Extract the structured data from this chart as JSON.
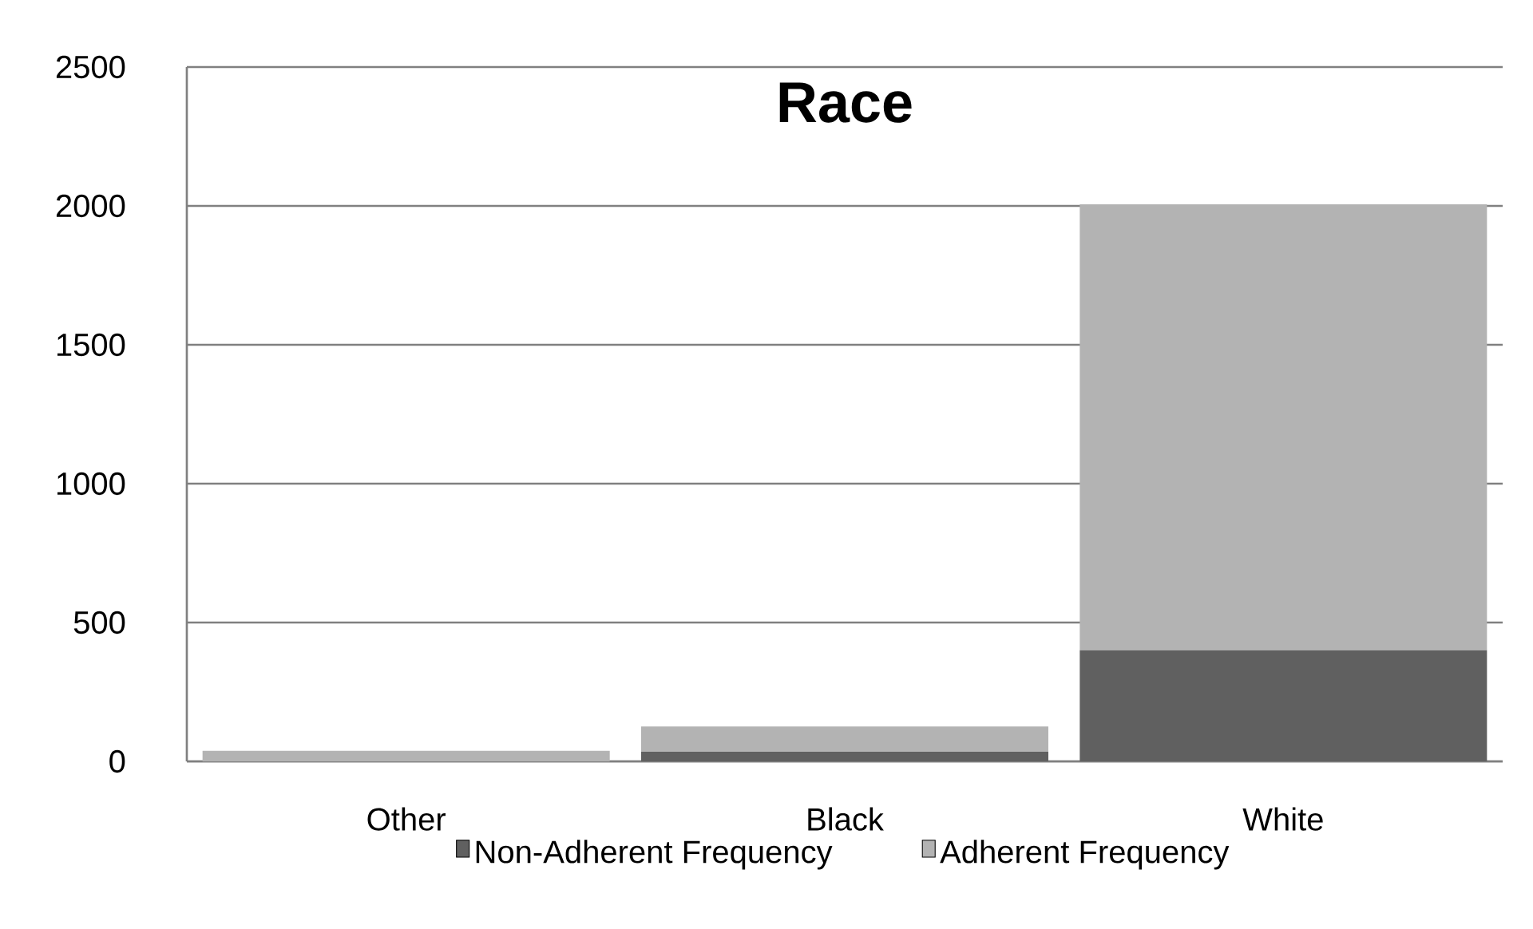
{
  "chart_data": {
    "type": "bar",
    "title": "Race",
    "categories": [
      "Other",
      "Black",
      "White"
    ],
    "stacked": true,
    "series": [
      {
        "name": "Non-Adherent Frequency",
        "color": "#606060",
        "values": [
          null,
          35,
          400
        ]
      },
      {
        "name": "Adherent Frequency",
        "color": "#b3b3b3",
        "values": [
          38,
          91,
          1606
        ]
      }
    ],
    "ylim": [
      0,
      2500
    ],
    "yticks": [
      0,
      500,
      1000,
      1500,
      2000,
      2500
    ],
    "grid": "y",
    "legend": "bottom"
  }
}
